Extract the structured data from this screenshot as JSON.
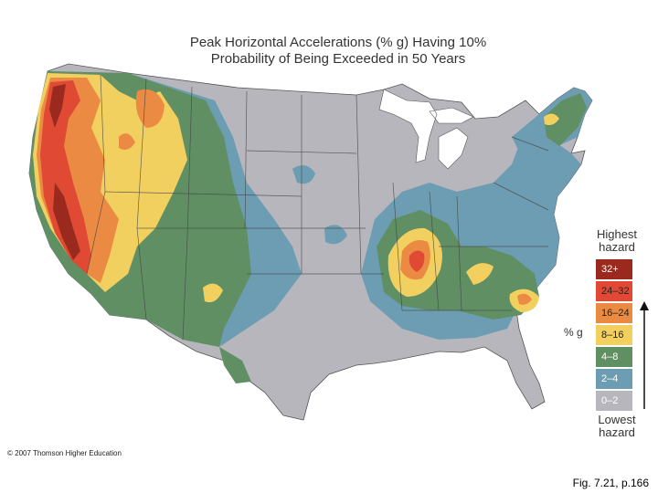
{
  "map": {
    "title_line1": "Peak Horizontal Accelerations (% g) Having 10%",
    "title_line2": "Probability of Being Exceeded in 50 Years"
  },
  "legend": {
    "heading_high_line1": "Highest",
    "heading_high_line2": "hazard",
    "heading_low_line1": "Lowest",
    "heading_low_line2": "hazard",
    "unit": "% g",
    "classes": [
      {
        "label": "32+",
        "color": "#9b2a1e",
        "text_color": "#ffffff"
      },
      {
        "label": "24–32",
        "color": "#e04a35",
        "text_color": "#222222"
      },
      {
        "label": "16–24",
        "color": "#eb8a43",
        "text_color": "#222222"
      },
      {
        "label": "8–16",
        "color": "#f2d060",
        "text_color": "#222222"
      },
      {
        "label": "4–8",
        "color": "#5f8f63",
        "text_color": "#ffffff"
      },
      {
        "label": "2–4",
        "color": "#6d9db2",
        "text_color": "#ffffff"
      },
      {
        "label": "0–2",
        "color": "#b7b6bd",
        "text_color": "#ffffff"
      }
    ]
  },
  "copyright": "© 2007 Thomson Higher Education",
  "caption": "Fig. 7.21, p.166"
}
